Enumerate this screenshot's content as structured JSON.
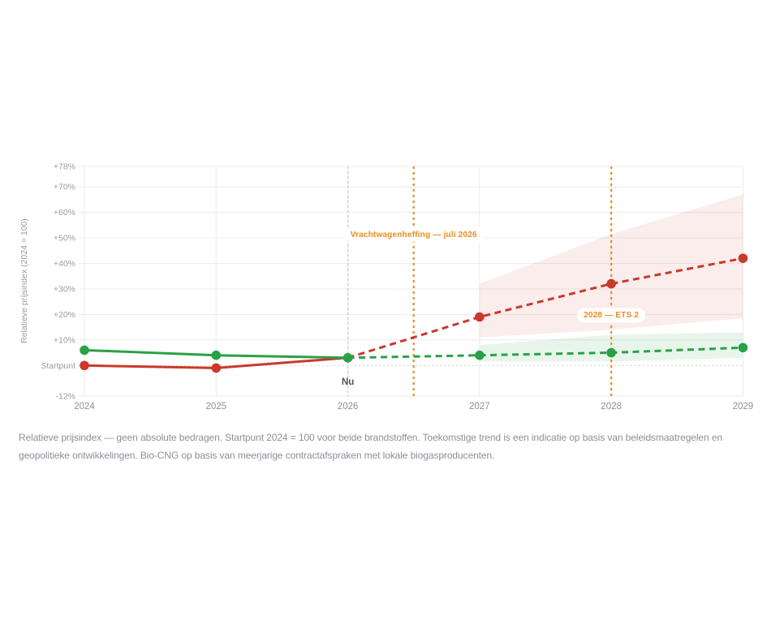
{
  "chart_data": {
    "type": "line",
    "title": "",
    "unit": "percent change vs 2024 index (2024 = 100)",
    "x": [
      2024,
      2025,
      2026,
      2027,
      2028,
      2029
    ],
    "x_tick_labels": [
      "2024",
      "2025",
      "2026",
      "2027",
      "2028",
      "2029"
    ],
    "ylabel": "Relatieve prijsindex (2024 = 100)",
    "ylim": [
      -12,
      78
    ],
    "yticks": {
      "values": [
        78,
        70,
        60,
        50,
        40,
        30,
        20,
        10,
        0,
        -12
      ],
      "labels": [
        "+78%",
        "+70%",
        "+60%",
        "+50%",
        "+40%",
        "+30%",
        "+20%",
        "+10%",
        "Startpunt",
        "-12%"
      ]
    },
    "grid": true,
    "legend": false,
    "zero_line_value": 0,
    "series": [
      {
        "id": "red-line",
        "color": "#c9392c",
        "band_fill": "rgba(201,57,44,0.09)",
        "solid_until_x": 2026,
        "values": [
          0,
          -1,
          3,
          19,
          32,
          42
        ]
      },
      {
        "id": "green-line",
        "color": "#2aa147",
        "band_fill": "rgba(42,161,71,0.11)",
        "solid_until_x": 2026,
        "values": [
          6,
          4,
          3,
          4,
          5,
          7
        ]
      }
    ],
    "bands": [
      {
        "series": "red-line",
        "x": [
          2027,
          2028,
          2029
        ],
        "lower": [
          11,
          14,
          18.5
        ],
        "upper": [
          32,
          51.5,
          67
        ]
      },
      {
        "series": "green-line",
        "x": [
          2027,
          2028,
          2029
        ],
        "lower": [
          1.5,
          1.5,
          3
        ],
        "upper": [
          8,
          12,
          13
        ]
      }
    ],
    "annotations": {
      "now": {
        "label": "Nu",
        "x": 2026,
        "line_color": "#cccccc",
        "label_color": "#555555"
      },
      "events": [
        {
          "label": "Vrachtwagenheffing — juli 2026",
          "x": 2026.5,
          "label_at_value": 51.5,
          "color": "#ef8a1c"
        },
        {
          "label": "2028 — ETS 2",
          "x": 2028,
          "label_at_value": 20,
          "color": "#ef8a1c"
        }
      ]
    },
    "axis_label_color": "#9b9b9b",
    "x_label_color": "#8f8f8f",
    "grid_color": "#ececec",
    "zero_line_color": "#d8d8d8",
    "background": "#ffffff"
  },
  "caption": {
    "line1": "Relatieve prijsindex — geen absolute bedragen. Startpunt 2024 = 100 voor beide brandstoffen. Toekomstige trend is een indicatie op basis van beleidsmaatregelen en",
    "line2": "geopolitieke ontwikkelingen. Bio-CNG op basis van meerjarige contractafspraken met lokale biogasproducenten."
  }
}
